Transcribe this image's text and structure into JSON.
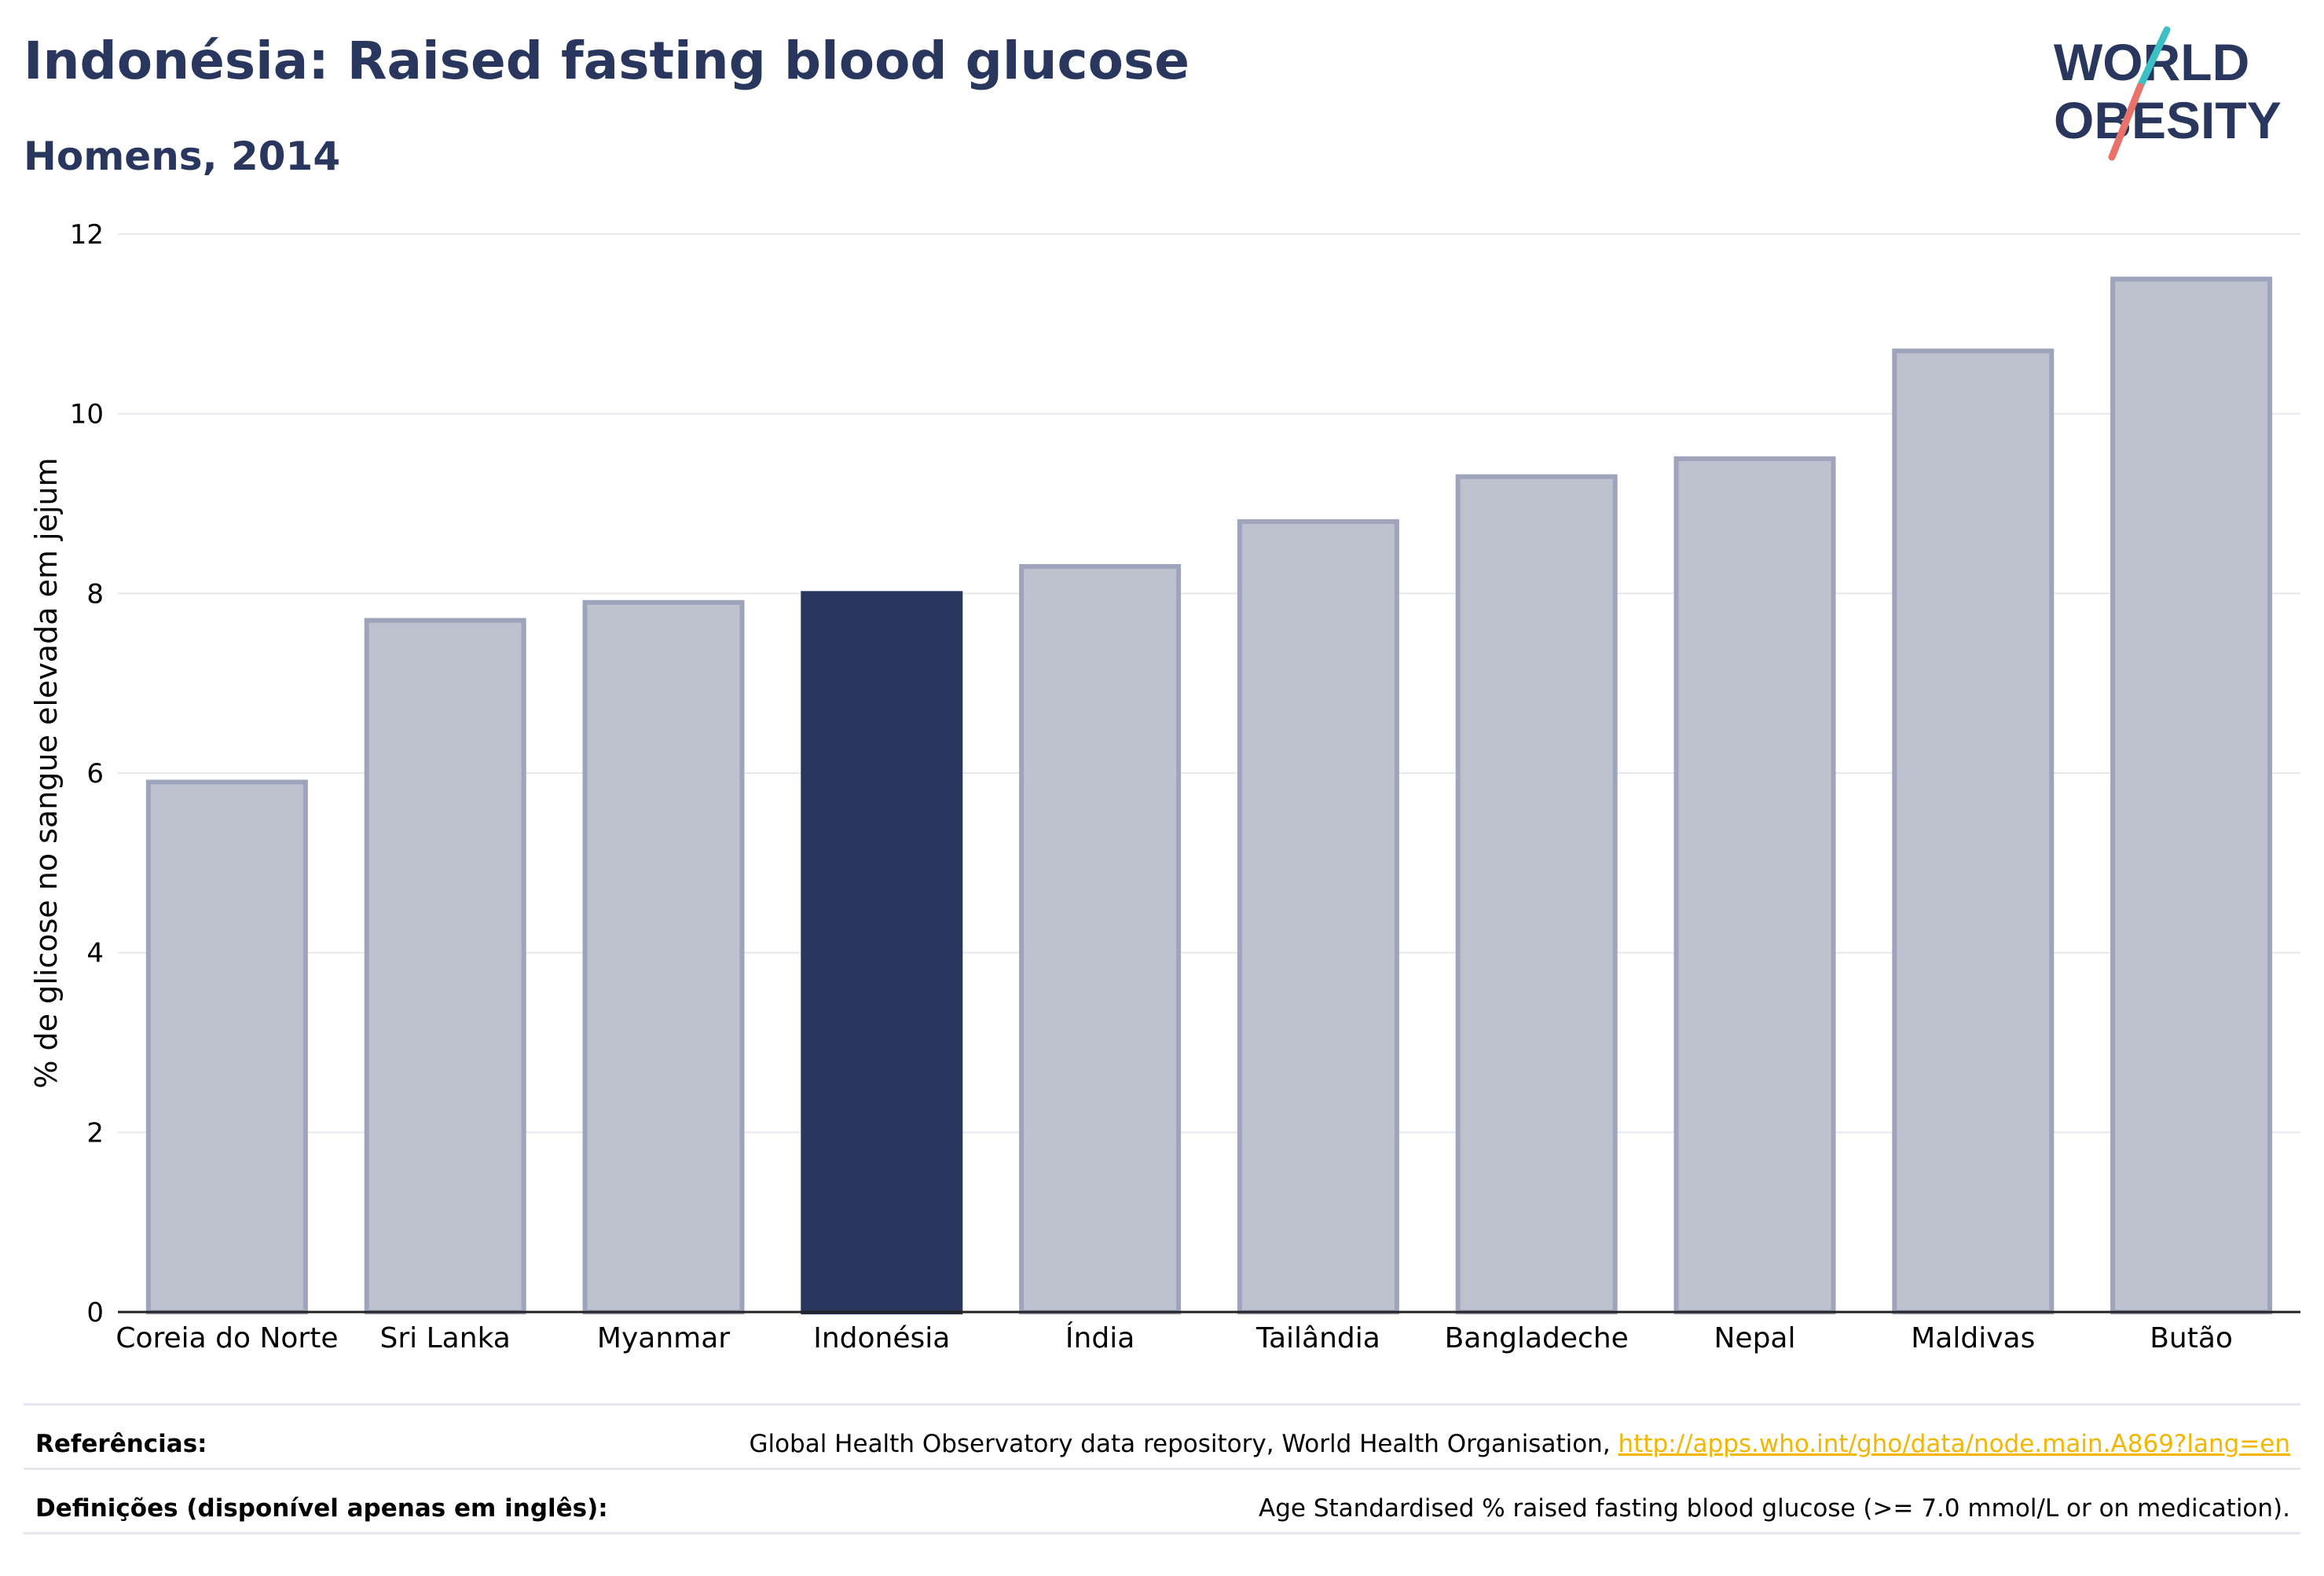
{
  "colors": {
    "title": "#29375f",
    "highlight_bar": "#29375f",
    "bar_fill": "#bec1ce",
    "bar_stroke": "#9ea4bb",
    "axis": "#222222",
    "grid": "#e7e8ee",
    "link": "#f2b705",
    "logo_teal": "#3cc0c5",
    "logo_coral": "#e9736a"
  },
  "header": {
    "title": "Indonésia: Raised fasting blood glucose",
    "subtitle": "Homens, 2014"
  },
  "logo": {
    "line1": "WORLD",
    "line2": "OBESITY"
  },
  "chart_data": {
    "type": "bar",
    "categories": [
      "Coreia do Norte",
      "Sri Lanka",
      "Myanmar",
      "Indonésia",
      "Índia",
      "Tailândia",
      "Bangladeche",
      "Nepal",
      "Maldivas",
      "Butão"
    ],
    "values": [
      5.9,
      7.7,
      7.9,
      8.0,
      8.3,
      8.8,
      9.3,
      9.5,
      10.7,
      11.5
    ],
    "highlight": "Indonésia",
    "title": "Indonésia: Raised fasting blood glucose",
    "subtitle": "Homens, 2014",
    "xlabel": "",
    "ylabel": "% de glicose no sangue elevada em jejum",
    "ylim": [
      0,
      12
    ],
    "yticks": [
      0,
      2,
      4,
      6,
      8,
      10,
      12
    ],
    "grid": true,
    "legend": "none"
  },
  "footer": {
    "references_label": "Referências:",
    "references_text": "Global Health Observatory data repository, World Health Organisation, ",
    "references_link": "http://apps.who.int/gho/data/node.main.A869?lang=en",
    "definitions_label": "Definições (disponível apenas em inglês):",
    "definitions_text": "Age Standardised % raised fasting blood glucose (>= 7.0 mmol/L or on medication)."
  }
}
